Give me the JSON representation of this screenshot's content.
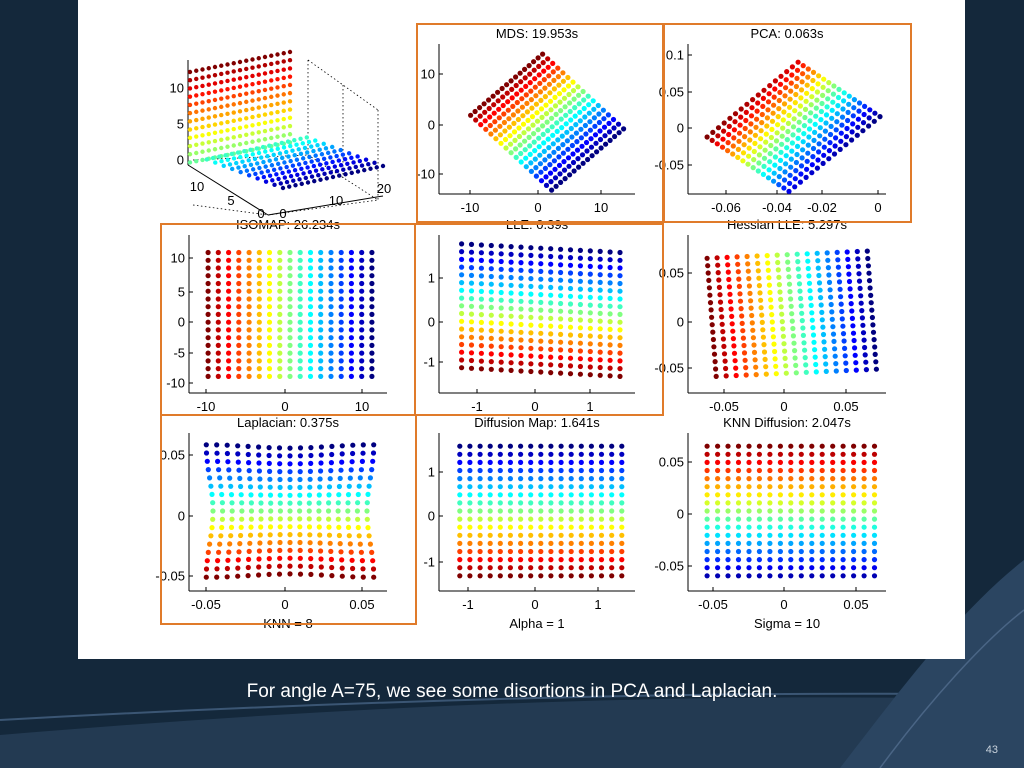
{
  "slide": {
    "caption": "For angle A=75, we see some disortions in PCA and Laplacian.",
    "slide_number": "43",
    "colors": {
      "background": "#14283b",
      "highlight_box": "#e07b2a",
      "slide_panel": "#ffffff"
    },
    "colormap": "jet"
  },
  "chart_data": [
    {
      "id": "original",
      "type": "scatter3d",
      "title": "",
      "x_ticks": [
        "0",
        "10",
        "20"
      ],
      "y_ticks": [
        "10",
        "5",
        "0"
      ],
      "z_ticks": [
        "10",
        "5",
        "0"
      ],
      "grid": true
    },
    {
      "id": "mds",
      "type": "scatter",
      "title": "MDS: 19.953s",
      "xlabel": "",
      "x_ticks": [
        "-10",
        "0",
        "10"
      ],
      "y_ticks": [
        "10",
        "0",
        "-10"
      ],
      "xlim": [
        -15,
        15
      ],
      "ylim": [
        -14,
        16
      ],
      "highlighted": true
    },
    {
      "id": "pca",
      "type": "scatter",
      "title": "PCA: 0.063s",
      "xlabel": "",
      "x_ticks": [
        "-0.06",
        "-0.04",
        "-0.02",
        "0"
      ],
      "y_ticks": [
        "0.1",
        "0.05",
        "0",
        "-0.05"
      ],
      "xlim": [
        -0.07,
        0.001
      ],
      "ylim": [
        -0.1,
        0.11
      ],
      "highlighted": true
    },
    {
      "id": "isomap",
      "type": "scatter",
      "title": "ISOMAP: 26.234s",
      "xlabel": "",
      "x_ticks": [
        "-10",
        "0",
        "10"
      ],
      "y_ticks": [
        "10",
        "5",
        "0",
        "-5",
        "-10"
      ],
      "xlim": [
        -13,
        13
      ],
      "ylim": [
        -12,
        12
      ],
      "highlighted": true
    },
    {
      "id": "lle",
      "type": "scatter",
      "title": "LLE: 0.39s",
      "xlabel": "",
      "x_ticks": [
        "-1",
        "0",
        "1"
      ],
      "y_ticks": [
        "1",
        "0",
        "-1"
      ],
      "xlim": [
        -1.6,
        1.6
      ],
      "ylim": [
        -1.8,
        1.9
      ],
      "highlighted": true
    },
    {
      "id": "hessian",
      "type": "scatter",
      "title": "Hessian LLE: 5.297s",
      "xlabel": "",
      "x_ticks": [
        "-0.05",
        "0",
        "0.05"
      ],
      "y_ticks": [
        "0.05",
        "0",
        "-0.05"
      ],
      "xlim": [
        -0.07,
        0.07
      ],
      "ylim": [
        -0.08,
        0.08
      ],
      "highlighted": false
    },
    {
      "id": "laplacian",
      "type": "scatter",
      "title": "Laplacian: 0.375s",
      "xlabel": "KNN = 8",
      "x_ticks": [
        "-0.05",
        "0",
        "0.05"
      ],
      "y_ticks": [
        "0.05",
        "0",
        "-0.05"
      ],
      "xlim": [
        -0.07,
        0.07
      ],
      "ylim": [
        -0.075,
        0.075
      ],
      "highlighted": true
    },
    {
      "id": "diffusion",
      "type": "scatter",
      "title": "Diffusion Map: 1.641s",
      "xlabel": "Alpha = 1",
      "x_ticks": [
        "-1",
        "0",
        "1"
      ],
      "y_ticks": [
        "1",
        "0",
        "-1"
      ],
      "xlim": [
        -1.5,
        1.5
      ],
      "ylim": [
        -1.6,
        1.6
      ],
      "highlighted": false
    },
    {
      "id": "knn",
      "type": "scatter",
      "title": "KNN Diffusion: 2.047s",
      "xlabel": "Sigma = 10",
      "x_ticks": [
        "-0.05",
        "0",
        "0.05"
      ],
      "y_ticks": [
        "0.05",
        "0",
        "-0.05"
      ],
      "xlim": [
        -0.07,
        0.07
      ],
      "ylim": [
        -0.075,
        0.075
      ],
      "highlighted": false
    }
  ]
}
